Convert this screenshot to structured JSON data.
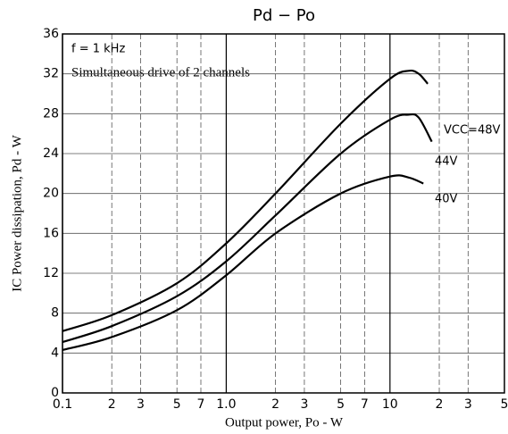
{
  "chart_data": {
    "type": "line",
    "title": "Pd − Po",
    "xlabel": "Output power, Po - W",
    "ylabel": "IC Power dissipation, Pd - W",
    "annotations": [
      "f = 1 kHz",
      "Simultaneous drive of 2 channels"
    ],
    "xscale": "log",
    "grid": true,
    "xlim": [
      0.1,
      50
    ],
    "ylim": [
      0,
      36
    ],
    "xticks": [
      0.1,
      {
        "value": 0.2,
        "label": "2"
      },
      {
        "value": 0.3,
        "label": "3"
      },
      {
        "value": 0.5,
        "label": "5"
      },
      {
        "value": 0.7,
        "label": "7"
      },
      {
        "value": 1,
        "label": "1.0"
      },
      2,
      3,
      5,
      7,
      10,
      {
        "value": 20,
        "label": "2"
      },
      {
        "value": 30,
        "label": "3"
      },
      {
        "value": 50,
        "label": "5"
      }
    ],
    "yticks": [
      0,
      4,
      8,
      12,
      16,
      20,
      24,
      28,
      32,
      36
    ],
    "series": [
      {
        "name": "VCC=48V",
        "color": "#000000",
        "x": [
          0.1,
          0.2,
          0.5,
          1,
          2,
          5,
          10,
          13,
          15,
          17
        ],
        "values": [
          6.2,
          7.8,
          11,
          15,
          20,
          27,
          31.5,
          32.3,
          32,
          31
        ]
      },
      {
        "name": "44V",
        "color": "#000000",
        "x": [
          0.1,
          0.2,
          0.5,
          1,
          2,
          5,
          10,
          13,
          15,
          18
        ],
        "values": [
          5.1,
          6.7,
          9.7,
          13.2,
          17.8,
          24,
          27.4,
          27.9,
          27.6,
          25.2
        ]
      },
      {
        "name": "40V",
        "color": "#000000",
        "x": [
          0.1,
          0.2,
          0.5,
          1,
          2,
          5,
          10,
          13,
          16
        ],
        "values": [
          4.3,
          5.6,
          8.3,
          11.8,
          16,
          20,
          21.7,
          21.6,
          21
        ]
      }
    ]
  }
}
